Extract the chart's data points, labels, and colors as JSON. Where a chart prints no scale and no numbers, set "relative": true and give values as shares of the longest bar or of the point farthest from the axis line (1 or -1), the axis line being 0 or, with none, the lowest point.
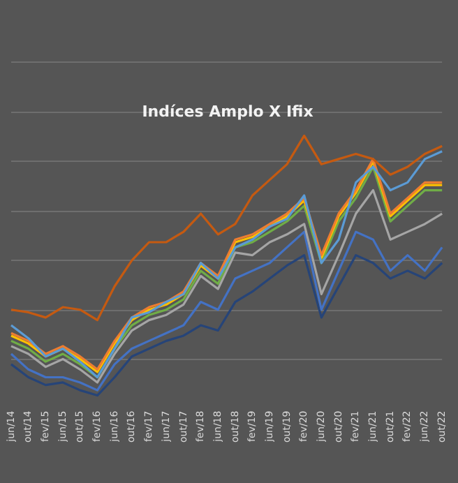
{
  "chart_data": {
    "type": "line",
    "title": "Indíces Amplo X Ifix",
    "relative": true,
    "grid": "y",
    "legend": false,
    "marker": "none",
    "line_style": "solid",
    "categories": [
      "jun/14",
      "out/14",
      "fev/15",
      "jun/15",
      "out/15",
      "fev/16",
      "jun/16",
      "out/16",
      "fev/17",
      "jun/17",
      "out/17",
      "fev/18",
      "jun/18",
      "out/18",
      "fev/19",
      "jun/19",
      "out/19",
      "fev/20",
      "jun/20",
      "out/20",
      "fev/21",
      "jun/21",
      "out/21",
      "fev/22",
      "jun/22",
      "out/22"
    ],
    "series": [
      {
        "color": "#c55a11",
        "values": [
          0.33,
          0.32,
          0.3,
          0.34,
          0.33,
          0.29,
          0.42,
          0.52,
          0.59,
          0.59,
          0.63,
          0.7,
          0.62,
          0.66,
          0.77,
          0.83,
          0.89,
          1,
          0.89,
          0.91,
          0.93,
          0.91,
          0.85,
          0.88,
          0.93,
          0.96
        ]
      },
      {
        "color": "#5b9bd5",
        "values": [
          0.27,
          0.22,
          0.15,
          0.18,
          0.13,
          0.07,
          0.18,
          0.3,
          0.32,
          0.36,
          0.39,
          0.51,
          0.45,
          0.57,
          0.6,
          0.65,
          0.68,
          0.77,
          0.51,
          0.6,
          0.82,
          0.88,
          0.79,
          0.82,
          0.91,
          0.94
        ]
      },
      {
        "color": "#ed7d31",
        "values": [
          0.24,
          0.21,
          0.16,
          0.19,
          0.15,
          0.1,
          0.21,
          0.3,
          0.34,
          0.36,
          0.4,
          0.51,
          0.46,
          0.6,
          0.62,
          0.66,
          0.7,
          0.76,
          0.54,
          0.7,
          0.79,
          0.91,
          0.7,
          0.76,
          0.82,
          0.82
        ]
      },
      {
        "color": "#ffc000",
        "values": [
          0.23,
          0.2,
          0.15,
          0.18,
          0.14,
          0.09,
          0.2,
          0.29,
          0.33,
          0.35,
          0.39,
          0.5,
          0.45,
          0.59,
          0.61,
          0.65,
          0.69,
          0.75,
          0.53,
          0.69,
          0.78,
          0.9,
          0.69,
          0.75,
          0.81,
          0.81
        ]
      },
      {
        "color": "#70ad47",
        "values": [
          0.21,
          0.18,
          0.13,
          0.16,
          0.12,
          0.07,
          0.18,
          0.27,
          0.31,
          0.33,
          0.37,
          0.48,
          0.43,
          0.57,
          0.59,
          0.63,
          0.67,
          0.73,
          0.51,
          0.67,
          0.76,
          0.88,
          0.67,
          0.73,
          0.79,
          0.79
        ]
      },
      {
        "color": "#a5a5a5",
        "values": [
          0.19,
          0.16,
          0.11,
          0.14,
          0.1,
          0.05,
          0.16,
          0.25,
          0.29,
          0.31,
          0.35,
          0.46,
          0.41,
          0.55,
          0.54,
          0.59,
          0.62,
          0.66,
          0.39,
          0.54,
          0.7,
          0.79,
          0.6,
          0.63,
          0.66,
          0.7
        ]
      },
      {
        "color": "#4472c4",
        "values": [
          0.16,
          0.1,
          0.07,
          0.07,
          0.05,
          0.02,
          0.12,
          0.18,
          0.21,
          0.24,
          0.27,
          0.36,
          0.33,
          0.45,
          0.48,
          0.51,
          0.57,
          0.63,
          0.33,
          0.48,
          0.63,
          0.6,
          0.48,
          0.54,
          0.48,
          0.57
        ]
      },
      {
        "color": "#264478",
        "values": [
          0.12,
          0.07,
          0.04,
          0.05,
          0.02,
          0,
          0.07,
          0.15,
          0.18,
          0.21,
          0.23,
          0.27,
          0.25,
          0.36,
          0.4,
          0.45,
          0.5,
          0.54,
          0.3,
          0.42,
          0.54,
          0.51,
          0.45,
          0.48,
          0.45,
          0.51
        ]
      }
    ]
  }
}
